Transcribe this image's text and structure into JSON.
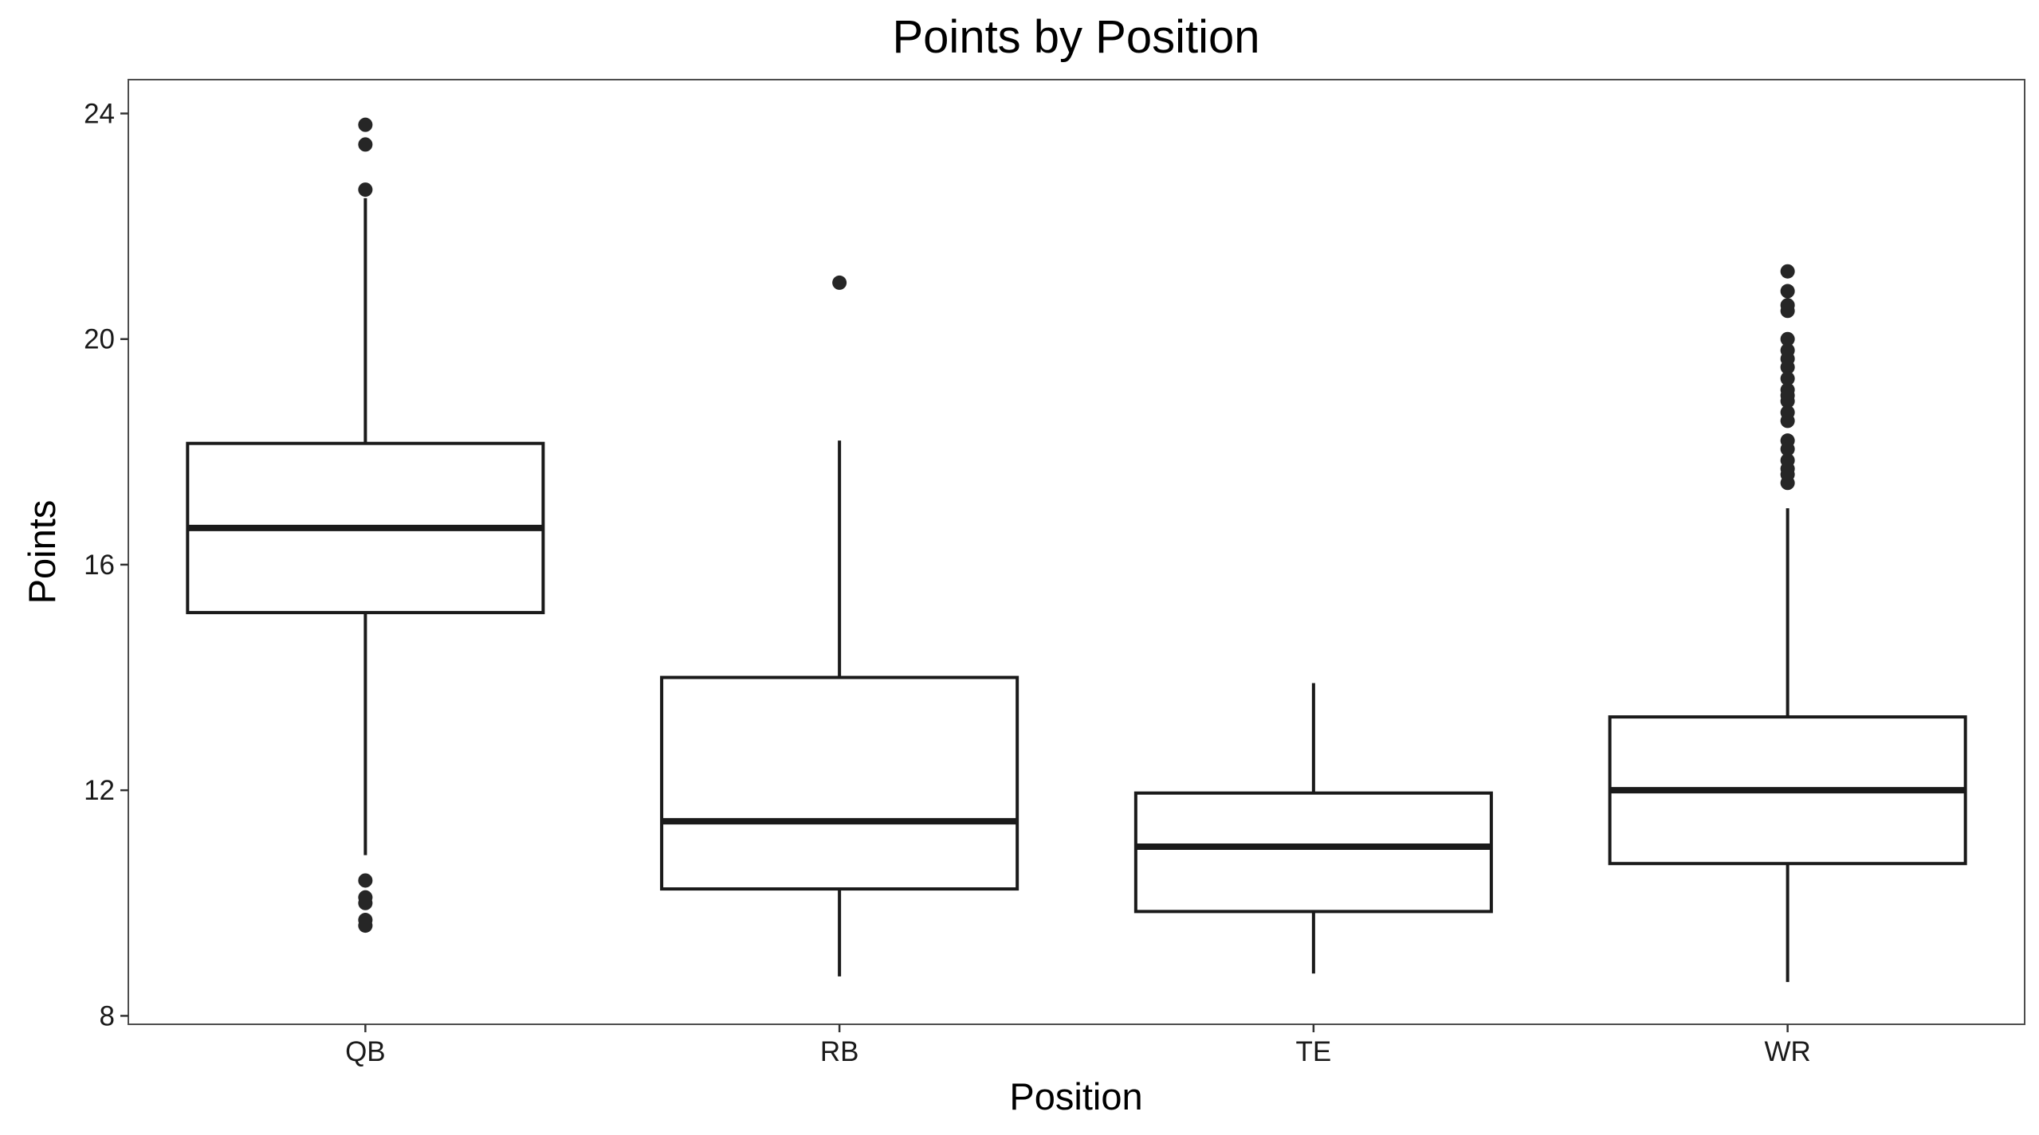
{
  "chart_data": {
    "type": "box",
    "title": "Points by Position",
    "xlabel": "Position",
    "ylabel": "Points",
    "categories": [
      "QB",
      "RB",
      "TE",
      "WR"
    ],
    "ylim": [
      7.85,
      24.6
    ],
    "yticks": [
      8,
      12,
      16,
      20,
      24
    ],
    "grid": false,
    "series": [
      {
        "category": "QB",
        "whisker_low": 10.85,
        "q1": 15.15,
        "median": 16.65,
        "q3": 18.15,
        "whisker_high": 22.5,
        "outliers": [
          23.8,
          23.45,
          22.65,
          10.4,
          10.1,
          10.0,
          9.7,
          9.6
        ]
      },
      {
        "category": "RB",
        "whisker_low": 8.7,
        "q1": 10.25,
        "median": 11.45,
        "q3": 14.0,
        "whisker_high": 18.2,
        "outliers": [
          21.0
        ]
      },
      {
        "category": "TE",
        "whisker_low": 8.75,
        "q1": 9.85,
        "median": 11.0,
        "q3": 11.95,
        "whisker_high": 13.9,
        "outliers": []
      },
      {
        "category": "WR",
        "whisker_low": 8.6,
        "q1": 10.7,
        "median": 12.0,
        "q3": 13.3,
        "whisker_high": 17.0,
        "outliers": [
          21.2,
          20.85,
          20.6,
          20.5,
          20.0,
          19.8,
          19.65,
          19.5,
          19.3,
          19.1,
          19.0,
          18.9,
          18.7,
          18.55,
          18.2,
          18.05,
          17.85,
          17.7,
          17.6,
          17.45
        ]
      }
    ]
  }
}
